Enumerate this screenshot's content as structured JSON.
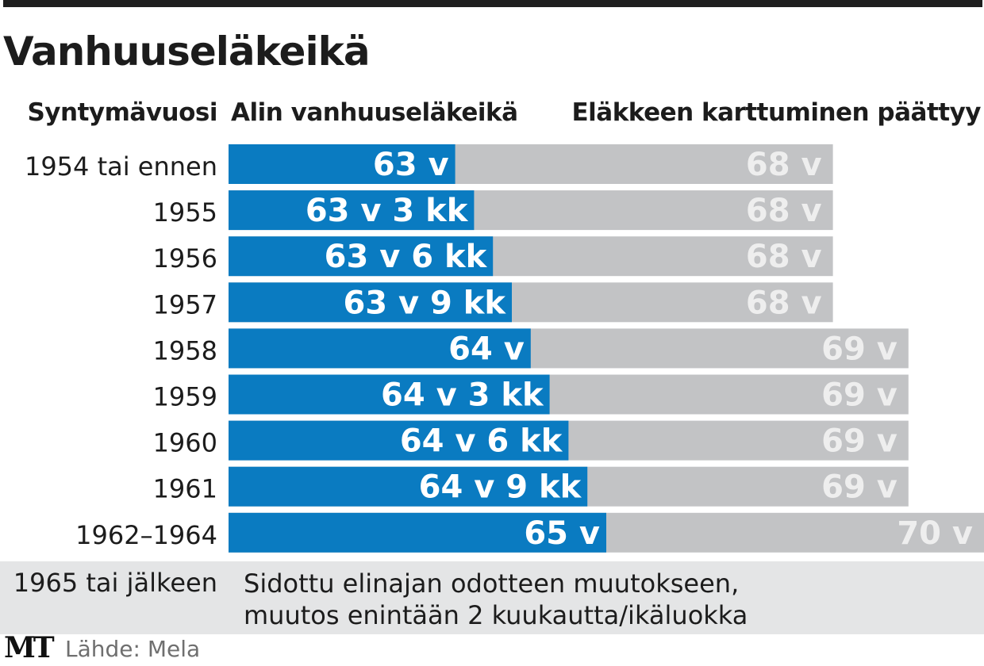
{
  "title": "Vanhuuseläkeikä",
  "headers": {
    "birth_year": "Syntymävuosi",
    "min_age": "Alin vanhuuseläkeikä",
    "accrual_end": "Eläkkeen karttuminen päättyy"
  },
  "chart_data": {
    "type": "bar",
    "title": "Vanhuuseläkeikä",
    "categories": [
      "1954 tai ennen",
      "1955",
      "1956",
      "1957",
      "1958",
      "1959",
      "1960",
      "1961",
      "1962–1964"
    ],
    "series": [
      {
        "name": "Alin vanhuuseläkeikä",
        "values": [
          63,
          63.25,
          63.5,
          63.75,
          64,
          64.25,
          64.5,
          64.75,
          65
        ],
        "labels": [
          "63 v",
          "63 v 3 kk",
          "63 v 6 kk",
          "63 v 9 kk",
          "64 v",
          "64 v 3 kk",
          "64 v 6 kk",
          "64 v 9 kk",
          "65 v"
        ],
        "color": "#0a7bc1"
      },
      {
        "name": "Eläkkeen karttuminen päättyy",
        "values": [
          68,
          68,
          68,
          68,
          69,
          69,
          69,
          69,
          70
        ],
        "labels": [
          "68 v",
          "68 v",
          "68 v",
          "68 v",
          "69 v",
          "69 v",
          "69 v",
          "69 v",
          "70 v"
        ],
        "color": "#c2c3c5"
      }
    ],
    "orientation": "horizontal",
    "grid": false,
    "legend": "none"
  },
  "footer_row": {
    "year": "1965 tai jälkeen",
    "note_line1": "Sidottu elinajan odotteen muutokseen,",
    "note_line2": "muutos enintään 2 kuukautta/ikäluokka"
  },
  "logo": "MT",
  "source": "Lähde: Mela",
  "colors": {
    "blue": "#0a7bc1",
    "gray": "#c2c3c5",
    "light_gray": "#e4e5e6",
    "text": "#1c1c1c",
    "label_white": "#ffffff",
    "label_light": "#eeeeee"
  }
}
